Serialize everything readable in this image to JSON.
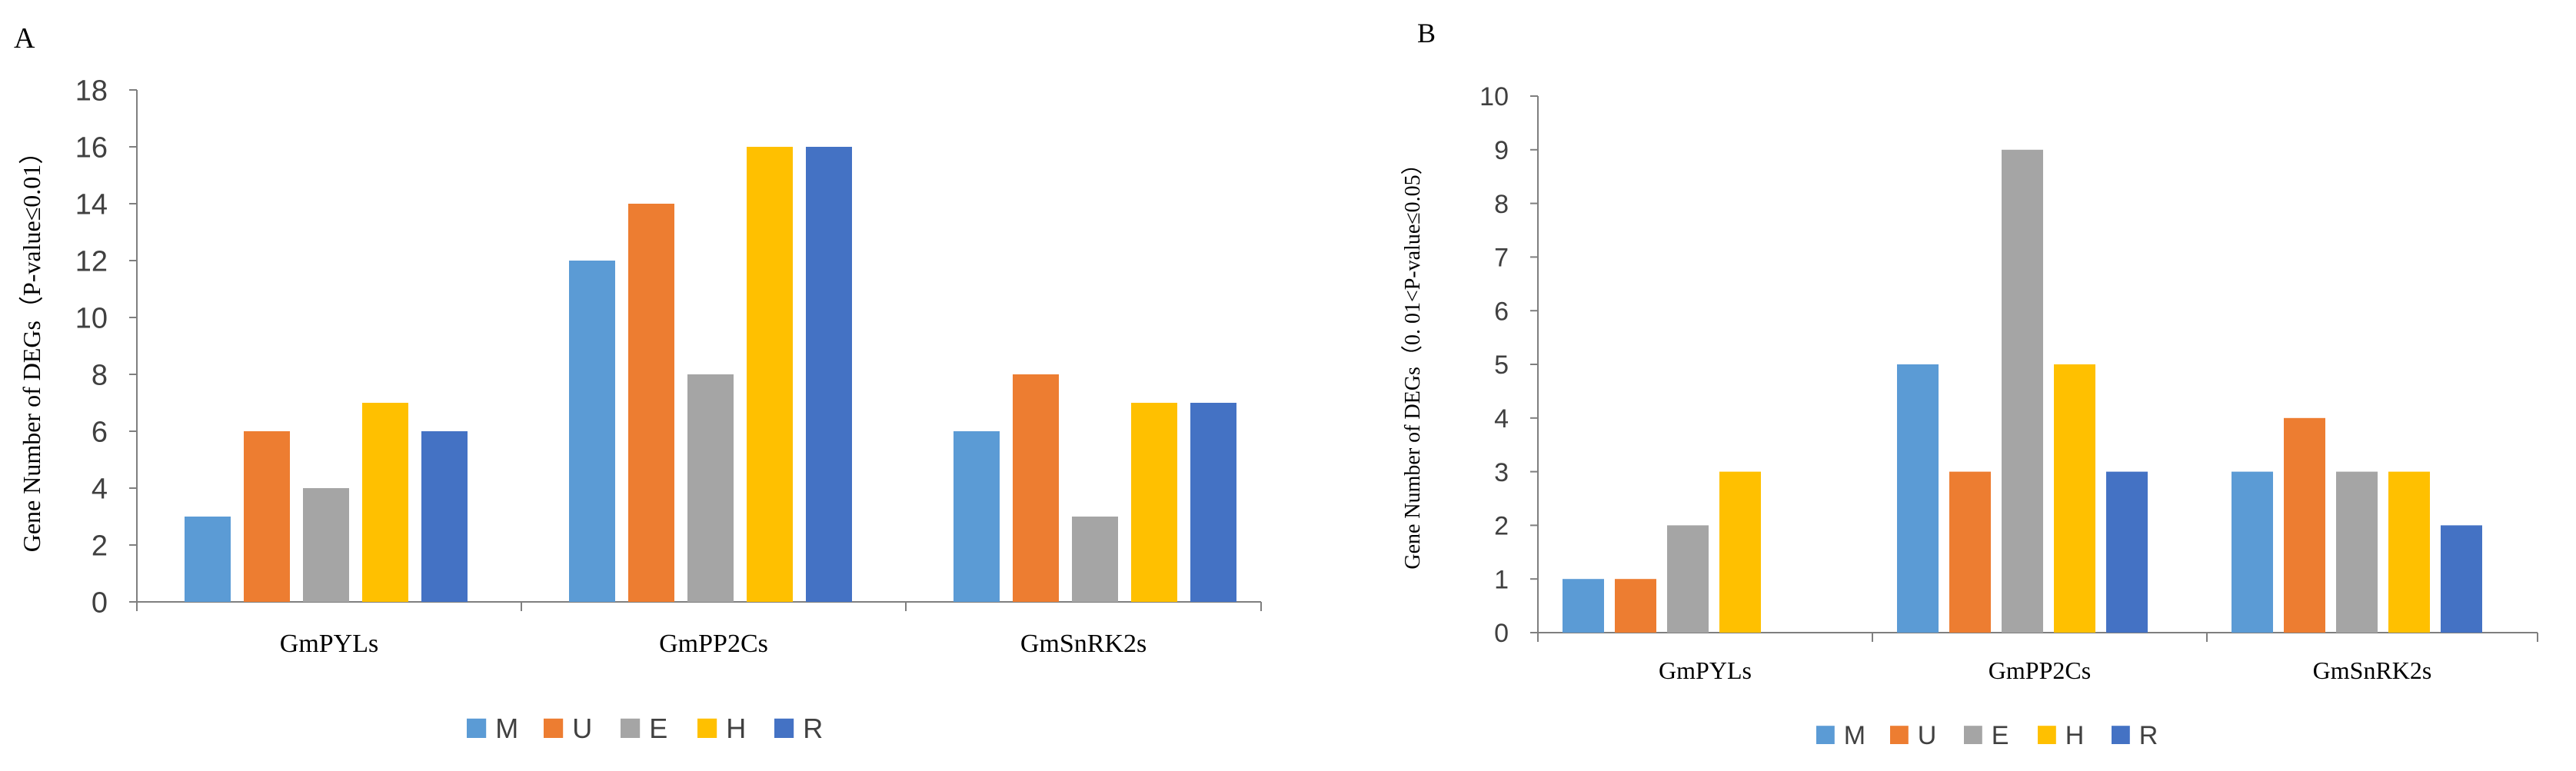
{
  "colors": {
    "M": "#5b9bd5",
    "U": "#ed7d31",
    "E": "#a5a5a5",
    "H": "#ffc000",
    "R": "#4472c4",
    "axis": "#7f7f7f",
    "text": "#404040"
  },
  "chart_data": [
    {
      "type": "bar",
      "panel_label": "A",
      "title": "",
      "xlabel": "",
      "ylabel": "Gene Number of DEGs（P-value≤0.01）",
      "ylim": [
        0,
        18
      ],
      "yticks": [
        0,
        2,
        4,
        6,
        8,
        10,
        12,
        14,
        16,
        18
      ],
      "categories": [
        "GmPYLs",
        "GmPP2Cs",
        "GmSnRK2s"
      ],
      "series": [
        {
          "name": "M",
          "values": [
            3,
            12,
            6
          ]
        },
        {
          "name": "U",
          "values": [
            6,
            14,
            8
          ]
        },
        {
          "name": "E",
          "values": [
            4,
            8,
            3
          ]
        },
        {
          "name": "H",
          "values": [
            7,
            16,
            7
          ]
        },
        {
          "name": "R",
          "values": [
            6,
            16,
            7
          ]
        }
      ],
      "legend": "bottom",
      "grid": false
    },
    {
      "type": "bar",
      "panel_label": "B",
      "title": "",
      "xlabel": "",
      "ylabel": "Gene Number of DEGs（0. 01<P-value≤0.05）",
      "ylim": [
        0,
        10
      ],
      "yticks": [
        0,
        1,
        2,
        3,
        4,
        5,
        6,
        7,
        8,
        9,
        10
      ],
      "categories": [
        "GmPYLs",
        "GmPP2Cs",
        "GmSnRK2s"
      ],
      "series": [
        {
          "name": "M",
          "values": [
            1,
            5,
            3
          ]
        },
        {
          "name": "U",
          "values": [
            1,
            3,
            4
          ]
        },
        {
          "name": "E",
          "values": [
            2,
            9,
            3
          ]
        },
        {
          "name": "H",
          "values": [
            3,
            5,
            3
          ]
        },
        {
          "name": "R",
          "values": [
            null,
            3,
            2
          ]
        }
      ],
      "legend": "bottom",
      "grid": false
    }
  ]
}
